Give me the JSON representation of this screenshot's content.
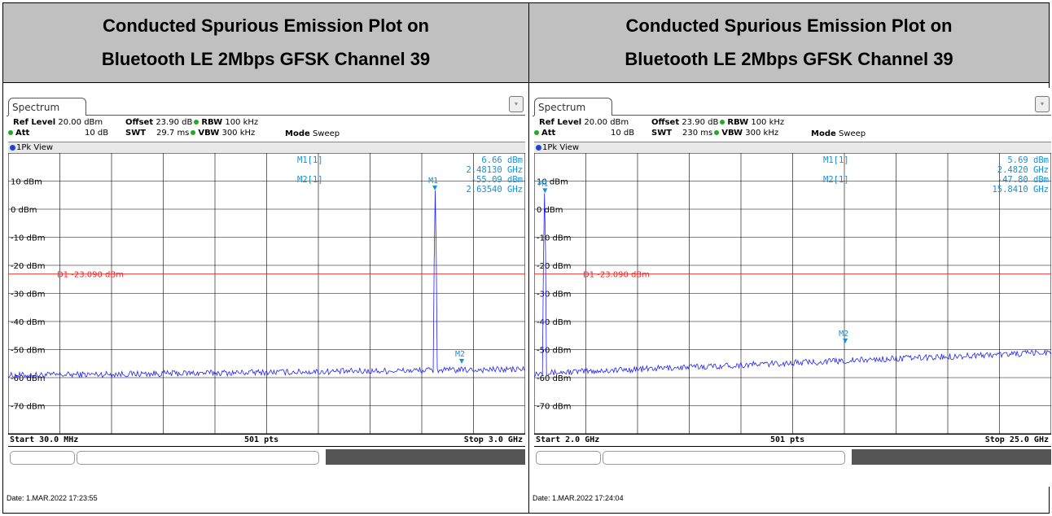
{
  "panels": [
    {
      "title_line1": "Conducted Spurious Emission Plot on",
      "title_line2": "Bluetooth LE 2Mbps GFSK Channel 39",
      "tab": "Spectrum",
      "params": {
        "ref_level_label": "Ref Level",
        "ref_level": "20.00 dBm",
        "att_label": "Att",
        "att": "10 dB",
        "offset_label": "Offset",
        "offset": "23.90 dB",
        "swt_label": "SWT",
        "swt": "29.7 ms",
        "rbw_label": "RBW",
        "rbw": "100 kHz",
        "vbw_label": "VBW",
        "vbw": "300 kHz",
        "mode_label": "Mode",
        "mode": "Sweep"
      },
      "view": "1Pk View",
      "markers": {
        "m1_name": "M1[1]",
        "m1_level": "6.66 dBm",
        "m1_freq": "2.48130 GHz",
        "m2_name": "M2[1]",
        "m2_level": "-55.09 dBm",
        "m2_freq": "2.63540 GHz"
      },
      "start": "Start 30.0 MHz",
      "pts": "501 pts",
      "stop": "Stop 3.0 GHz",
      "date": "Date: 1.MAR.2022  17:23:55"
    },
    {
      "title_line1": "Conducted Spurious Emission Plot on",
      "title_line2": "Bluetooth LE 2Mbps GFSK Channel 39",
      "tab": "Spectrum",
      "params": {
        "ref_level_label": "Ref Level",
        "ref_level": "20.00 dBm",
        "att_label": "Att",
        "att": "10 dB",
        "offset_label": "Offset",
        "offset": "23.90 dB",
        "swt_label": "SWT",
        "swt": "230 ms",
        "rbw_label": "RBW",
        "rbw": "100 kHz",
        "vbw_label": "VBW",
        "vbw": "300 kHz",
        "mode_label": "Mode",
        "mode": "Sweep"
      },
      "view": "1Pk View",
      "markers": {
        "m1_name": "M1[1]",
        "m1_level": "5.69 dBm",
        "m1_freq": "2.4820 GHz",
        "m2_name": "M2[1]",
        "m2_level": "-47.80 dBm",
        "m2_freq": "15.8410 GHz"
      },
      "start": "Start 2.0 GHz",
      "pts": "501 pts",
      "stop": "Stop 25.0 GHz",
      "date": "Date: 1.MAR.2022  17:24:04"
    }
  ],
  "chart_data": [
    {
      "type": "line",
      "xlim": [
        30,
        3000
      ],
      "x_unit": "MHz",
      "ylim": [
        -80,
        20
      ],
      "y_ticks": [
        10,
        0,
        -10,
        -20,
        -30,
        -40,
        -50,
        -60,
        -70
      ],
      "y_tick_labels": [
        "10 dBm",
        "0 dBm",
        "-10 dBm",
        "-20 dBm",
        "-30 dBm",
        "-40 dBm",
        "-50 dBm",
        "-60 dBm",
        "-70 dBm"
      ],
      "limit_line": {
        "label": "D1  -23.090 dBm",
        "value": -23.09
      },
      "noise_floor": -58.2,
      "noise_start_offset": -1.0,
      "noise_end_offset": 1.2,
      "peaks": [
        {
          "x": 2481.3,
          "y": 6.66
        }
      ],
      "markers": [
        {
          "label": "M1",
          "x": 2481.3,
          "y": 6.66
        },
        {
          "label": "M2",
          "x": 2635.4,
          "y": -55.09
        }
      ],
      "grid": true,
      "trace_color": "#2222ff",
      "limit_color": "#ee2222"
    },
    {
      "type": "line",
      "xlim": [
        2000,
        25000
      ],
      "x_unit": "MHz",
      "ylim": [
        -80,
        20
      ],
      "y_ticks": [
        10,
        0,
        -10,
        -20,
        -30,
        -40,
        -50,
        -60,
        -70
      ],
      "y_tick_labels": [
        "10 dBm",
        "0 dBm",
        "-10 dBm",
        "-20 dBm",
        "-30 dBm",
        "-40 dBm",
        "-50 dBm",
        "-60 dBm",
        "-70 dBm"
      ],
      "limit_line": {
        "label": "D1  -23.090 dBm",
        "value": -23.09
      },
      "noise_floor": -54.5,
      "noise_start_offset": -4.0,
      "noise_end_offset": 3.5,
      "peaks": [
        {
          "x": 2482.0,
          "y": 5.69
        }
      ],
      "markers": [
        {
          "label": "M1",
          "x": 2482.0,
          "y": 5.69
        },
        {
          "label": "M2",
          "x": 15841.0,
          "y": -47.8
        }
      ],
      "grid": true,
      "trace_color": "#2222ff",
      "limit_color": "#ee2222"
    }
  ]
}
